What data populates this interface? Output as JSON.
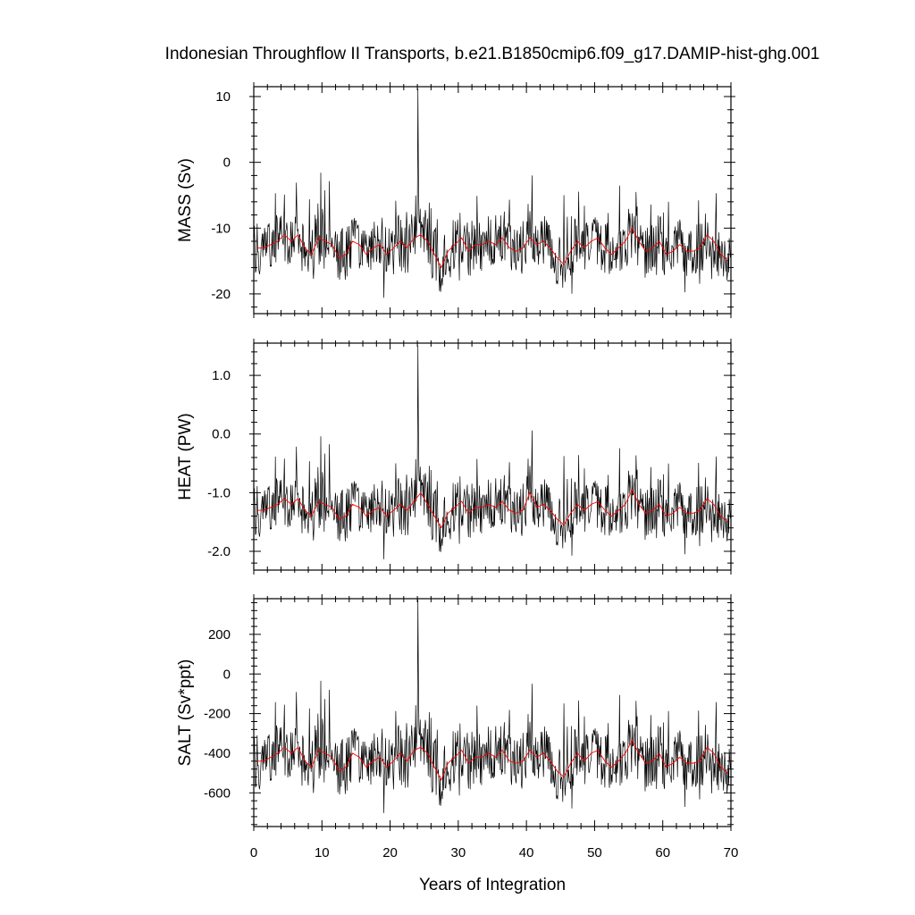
{
  "title": "Indonesian Throughflow II Transports, b.e21.B1850cmip6.f09_g17.DAMIP-hist-ghg.001",
  "xlabel": "Years of Integration",
  "colors": {
    "monthly": "#000000",
    "annual_mean": "#ff0000",
    "frame": "#000000"
  },
  "chart_data": [
    {
      "type": "line",
      "ylabel": "MASS (Sv)",
      "xlim": [
        0,
        70
      ],
      "ylim": [
        -23,
        11.5
      ],
      "xticks": [
        0,
        10,
        20,
        30,
        40,
        50,
        60,
        70
      ],
      "yticks": [
        -20,
        -10,
        0,
        10
      ],
      "ytick_labels": [
        "-20",
        "-10",
        "0",
        "10"
      ],
      "grid": false,
      "series": [
        {
          "kind": "monthly",
          "summary": {
            "mean": -13.5,
            "std": 3.4,
            "min": -22.5,
            "max": 11.2,
            "max_at_year": 24.1
          }
        },
        {
          "kind": "annual_mean",
          "values": [
            -13.0,
            -13.0,
            -12.5,
            -12.0,
            -11.0,
            -12.0,
            -11.0,
            -13.0,
            -14.0,
            -11.5,
            -12.0,
            -12.5,
            -14.5,
            -14.0,
            -12.0,
            -12.5,
            -14.0,
            -13.0,
            -12.5,
            -14.0,
            -13.0,
            -12.0,
            -13.0,
            -11.5,
            -11.0,
            -12.0,
            -14.0,
            -16.0,
            -13.5,
            -12.5,
            -11.5,
            -13.5,
            -12.5,
            -12.5,
            -12.0,
            -12.5,
            -11.5,
            -13.0,
            -13.5,
            -13.0,
            -11.5,
            -12.5,
            -12.0,
            -13.0,
            -14.5,
            -15.5,
            -13.5,
            -12.0,
            -13.0,
            -12.0,
            -11.5,
            -13.0,
            -14.0,
            -13.0,
            -12.0,
            -10.0,
            -12.0,
            -13.5,
            -13.0,
            -12.0,
            -14.0,
            -13.5,
            -12.5,
            -13.5,
            -13.5,
            -13.0,
            -11.0,
            -12.0,
            -14.0,
            -15.0
          ]
        }
      ]
    },
    {
      "type": "line",
      "ylabel": "HEAT (PW)",
      "xlim": [
        0,
        70
      ],
      "ylim": [
        -2.32,
        1.55
      ],
      "xticks": [
        0,
        10,
        20,
        30,
        40,
        50,
        60,
        70
      ],
      "yticks": [
        -2.0,
        -1.0,
        0.0,
        1.0
      ],
      "ytick_labels": [
        "-2.0",
        "-1.0",
        "0.0",
        "1.0"
      ],
      "grid": false,
      "series": [
        {
          "kind": "monthly",
          "summary": {
            "mean": -1.35,
            "std": 0.38,
            "min": -2.28,
            "max": 1.5,
            "max_at_year": 24.1
          }
        },
        {
          "kind": "annual_mean",
          "values": [
            -1.3,
            -1.3,
            -1.25,
            -1.2,
            -1.1,
            -1.2,
            -1.1,
            -1.3,
            -1.4,
            -1.15,
            -1.2,
            -1.25,
            -1.45,
            -1.4,
            -1.2,
            -1.25,
            -1.4,
            -1.3,
            -1.25,
            -1.4,
            -1.3,
            -1.2,
            -1.3,
            -1.15,
            -1.0,
            -1.2,
            -1.4,
            -1.6,
            -1.35,
            -1.25,
            -1.15,
            -1.35,
            -1.25,
            -1.25,
            -1.2,
            -1.25,
            -1.15,
            -1.3,
            -1.35,
            -1.3,
            -1.0,
            -1.25,
            -1.2,
            -1.3,
            -1.45,
            -1.55,
            -1.35,
            -1.2,
            -1.3,
            -1.2,
            -1.15,
            -1.3,
            -1.4,
            -1.3,
            -1.2,
            -0.95,
            -1.2,
            -1.35,
            -1.3,
            -1.2,
            -1.4,
            -1.35,
            -1.25,
            -1.35,
            -1.35,
            -1.3,
            -1.1,
            -1.2,
            -1.4,
            -1.5
          ]
        }
      ]
    },
    {
      "type": "line",
      "ylabel": "SALT (Sv*ppt)",
      "xlim": [
        0,
        70
      ],
      "ylim": [
        -770,
        380
      ],
      "xticks": [
        0,
        10,
        20,
        30,
        40,
        50,
        60,
        70
      ],
      "xtick_labels": [
        "0",
        "10",
        "20",
        "30",
        "40",
        "50",
        "60",
        "70"
      ],
      "yticks": [
        -600,
        -400,
        -200,
        0,
        200
      ],
      "ytick_labels": [
        "-600",
        "-400",
        "-200",
        "0",
        "200"
      ],
      "grid": false,
      "series": [
        {
          "kind": "monthly",
          "summary": {
            "mean": -455,
            "std": 120,
            "min": -760,
            "max": 375,
            "max_at_year": 24.1
          }
        },
        {
          "kind": "annual_mean",
          "values": [
            -440,
            -440,
            -420,
            -400,
            -370,
            -400,
            -370,
            -440,
            -470,
            -385,
            -400,
            -420,
            -490,
            -470,
            -400,
            -420,
            -470,
            -440,
            -420,
            -470,
            -440,
            -400,
            -440,
            -385,
            -370,
            -400,
            -470,
            -535,
            -450,
            -420,
            -385,
            -450,
            -420,
            -420,
            -400,
            -420,
            -385,
            -440,
            -450,
            -440,
            -385,
            -420,
            -400,
            -440,
            -490,
            -520,
            -450,
            -400,
            -440,
            -400,
            -385,
            -440,
            -470,
            -440,
            -400,
            -335,
            -400,
            -450,
            -440,
            -400,
            -470,
            -450,
            -420,
            -450,
            -450,
            -440,
            -370,
            -400,
            -470,
            -500
          ]
        }
      ]
    }
  ]
}
